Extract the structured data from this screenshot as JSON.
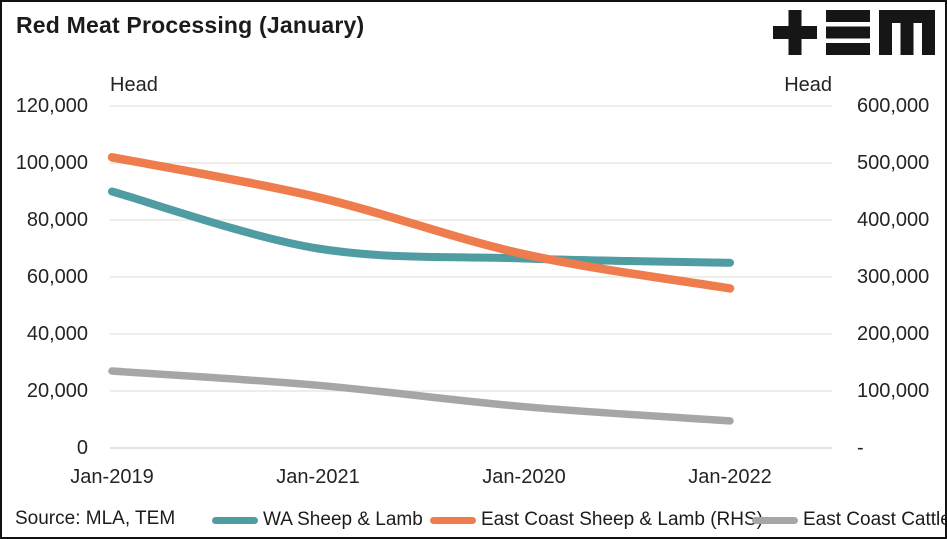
{
  "header": {
    "title": "Red Meat Processing (January)",
    "logo_name": "TEM"
  },
  "source": "Source: MLA, TEM",
  "chart_data": {
    "type": "line",
    "smooth": true,
    "grid": true,
    "grid_color": "#EAE8DD",
    "zero_line_color": "#DCDACF",
    "legend_position": "bottom",
    "title": "Red Meat Processing (January)",
    "categories": [
      "Jan-2019",
      "Jan-2021",
      "Jan-2020",
      "Jan-2022"
    ],
    "series": [
      {
        "name": "WA Sheep & Lamb",
        "axis": "left",
        "color": "#4F9CA3",
        "values": [
          90000,
          70000,
          66500,
          65000
        ]
      },
      {
        "name": "East Coast Sheep & Lamb (RHS)",
        "axis": "right",
        "color": "#EF7C4C",
        "values": [
          510000,
          440000,
          340000,
          280000
        ]
      },
      {
        "name": "East Coast Cattle",
        "axis": "left",
        "color": "#A6A6A6",
        "values": [
          27000,
          22000,
          14500,
          9500
        ]
      }
    ],
    "left_axis": {
      "title": "Head",
      "min": 0,
      "max": 120000,
      "tick_interval": 20000,
      "tick_labels": [
        "120,000",
        "100,000",
        "80,000",
        "60,000",
        "40,000",
        "20,000",
        "0"
      ]
    },
    "right_axis": {
      "title": "Head",
      "min": 0,
      "max": 600000,
      "tick_interval": 100000,
      "tick_labels": [
        "600,000",
        "500,000",
        "400,000",
        "300,000",
        "200,000",
        "100,000",
        "-"
      ]
    }
  }
}
